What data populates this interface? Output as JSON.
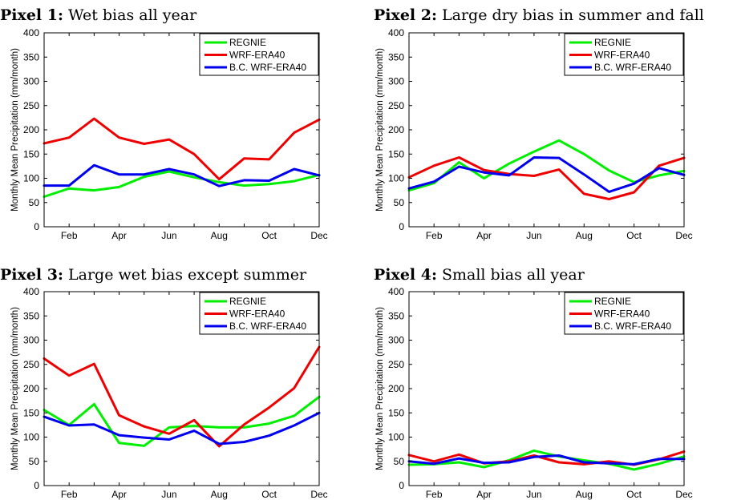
{
  "chart_data": [
    {
      "type": "line",
      "title_bold": "Pixel 1:",
      "title": "Wet bias all year",
      "xlabel": "",
      "ylabel": "Monthly Mean Precipitation (mm/month)",
      "ylim": [
        0,
        400
      ],
      "yticks": [
        0,
        50,
        100,
        150,
        200,
        250,
        300,
        350,
        400
      ],
      "x": [
        1,
        2,
        3,
        4,
        5,
        6,
        7,
        8,
        9,
        10,
        11,
        12
      ],
      "xtick_labels": [
        "Feb",
        "Apr",
        "Jun",
        "Aug",
        "Oct",
        "Dec"
      ],
      "xtick_positions": [
        2,
        4,
        6,
        8,
        10,
        12
      ],
      "legend_position": "top-right",
      "grid": false,
      "series": [
        {
          "name": "REGNIE",
          "color": "#00ee00",
          "values": [
            62,
            79,
            75,
            82,
            103,
            114,
            102,
            92,
            85,
            88,
            94,
            107
          ]
        },
        {
          "name": "WRF-ERA40",
          "color": "#ee0000",
          "values": [
            172,
            184,
            223,
            184,
            171,
            180,
            150,
            98,
            141,
            139,
            194,
            221
          ]
        },
        {
          "name": "B.C. WRF-ERA40",
          "color": "#0000ee",
          "values": [
            85,
            85,
            127,
            108,
            108,
            119,
            108,
            84,
            96,
            95,
            119,
            106
          ]
        }
      ]
    },
    {
      "type": "line",
      "title_bold": "Pixel 2:",
      "title": "Large dry bias in summer and fall",
      "xlabel": "",
      "ylabel": "Monthly Mean Precipitation (mm/month)",
      "ylim": [
        0,
        400
      ],
      "yticks": [
        0,
        50,
        100,
        150,
        200,
        250,
        300,
        350,
        400
      ],
      "x": [
        1,
        2,
        3,
        4,
        5,
        6,
        7,
        8,
        9,
        10,
        11,
        12
      ],
      "xtick_labels": [
        "Feb",
        "Apr",
        "Jun",
        "Aug",
        "Oct",
        "Dec"
      ],
      "xtick_positions": [
        2,
        4,
        6,
        8,
        10,
        12
      ],
      "legend_position": "top-right",
      "grid": false,
      "series": [
        {
          "name": "REGNIE",
          "color": "#00ee00",
          "values": [
            75,
            90,
            133,
            100,
            130,
            155,
            178,
            150,
            116,
            92,
            106,
            115
          ]
        },
        {
          "name": "WRF-ERA40",
          "color": "#ee0000",
          "values": [
            102,
            126,
            143,
            117,
            109,
            105,
            118,
            68,
            57,
            71,
            126,
            142
          ]
        },
        {
          "name": "B.C. WRF-ERA40",
          "color": "#0000ee",
          "values": [
            79,
            93,
            124,
            112,
            106,
            143,
            142,
            108,
            72,
            89,
            121,
            107
          ]
        }
      ]
    },
    {
      "type": "line",
      "title_bold": "Pixel 3:",
      "title": "Large wet bias except summer",
      "xlabel": "",
      "ylabel": "Monthly Mean Precipitation (mm/month)",
      "ylim": [
        0,
        400
      ],
      "yticks": [
        0,
        50,
        100,
        150,
        200,
        250,
        300,
        350,
        400
      ],
      "x": [
        1,
        2,
        3,
        4,
        5,
        6,
        7,
        8,
        9,
        10,
        11,
        12
      ],
      "xtick_labels": [
        "Feb",
        "Apr",
        "Jun",
        "Aug",
        "Oct",
        "Dec"
      ],
      "xtick_positions": [
        2,
        4,
        6,
        8,
        10,
        12
      ],
      "legend_position": "top-right",
      "grid": false,
      "series": [
        {
          "name": "REGNIE",
          "color": "#00ee00",
          "values": [
            156,
            125,
            168,
            88,
            82,
            120,
            123,
            120,
            120,
            128,
            144,
            183
          ]
        },
        {
          "name": "WRF-ERA40",
          "color": "#ee0000",
          "values": [
            262,
            227,
            251,
            145,
            122,
            107,
            135,
            81,
            126,
            161,
            201,
            286
          ]
        },
        {
          "name": "B.C. WRF-ERA40",
          "color": "#0000ee",
          "values": [
            142,
            124,
            126,
            104,
            99,
            95,
            113,
            86,
            90,
            103,
            124,
            150
          ]
        }
      ]
    },
    {
      "type": "line",
      "title_bold": "Pixel 4:",
      "title": "Small bias all year",
      "xlabel": "",
      "ylabel": "Monthly Mean Precipitation (mm/month)",
      "ylim": [
        0,
        400
      ],
      "yticks": [
        0,
        50,
        100,
        150,
        200,
        250,
        300,
        350,
        400
      ],
      "x": [
        1,
        2,
        3,
        4,
        5,
        6,
        7,
        8,
        9,
        10,
        11,
        12
      ],
      "xtick_labels": [
        "Feb",
        "Apr",
        "Jun",
        "Aug",
        "Oct",
        "Dec"
      ],
      "xtick_positions": [
        2,
        4,
        6,
        8,
        10,
        12
      ],
      "legend_position": "top-right",
      "grid": false,
      "series": [
        {
          "name": "REGNIE",
          "color": "#00ee00",
          "values": [
            43,
            44,
            48,
            38,
            52,
            72,
            60,
            52,
            45,
            33,
            45,
            60
          ]
        },
        {
          "name": "WRF-ERA40",
          "color": "#ee0000",
          "values": [
            63,
            50,
            64,
            46,
            50,
            62,
            48,
            44,
            50,
            43,
            54,
            70
          ]
        },
        {
          "name": "B.C. WRF-ERA40",
          "color": "#0000ee",
          "values": [
            50,
            45,
            56,
            47,
            48,
            59,
            62,
            48,
            46,
            44,
            55,
            55
          ]
        }
      ]
    }
  ]
}
